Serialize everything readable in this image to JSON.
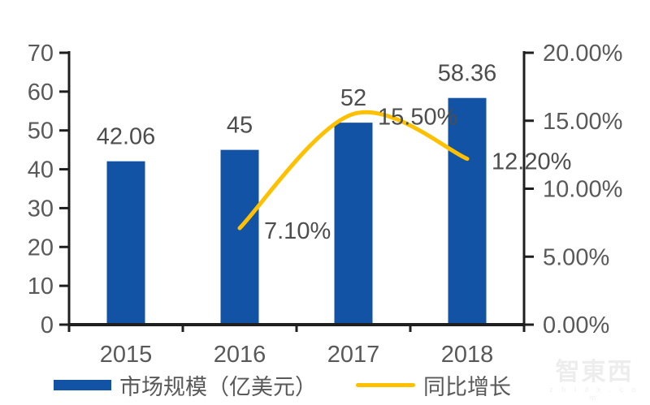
{
  "chart_data": {
    "type": "combo-bar-line",
    "categories": [
      "2015",
      "2016",
      "2017",
      "2018"
    ],
    "series": [
      {
        "name": "市场规模（亿美元）",
        "type": "bar",
        "axis": "left",
        "color": "#1253A6",
        "values": [
          42.06,
          45,
          52,
          58.36
        ],
        "labels": [
          "42.06",
          "45",
          "52",
          "58.36"
        ]
      },
      {
        "name": "同比增长",
        "type": "line",
        "axis": "right",
        "color": "#FFC000",
        "values": [
          null,
          0.071,
          0.155,
          0.122
        ],
        "labels": [
          null,
          "7.10%",
          "15.50%",
          "12.20%"
        ]
      }
    ],
    "left_axis": {
      "min": 0,
      "max": 70,
      "step": 10,
      "tick_labels": [
        "0",
        "10",
        "20",
        "30",
        "40",
        "50",
        "60",
        "70"
      ]
    },
    "right_axis": {
      "min": 0,
      "max": 0.2,
      "step": 0.05,
      "tick_labels": [
        "0.00%",
        "5.00%",
        "10.00%",
        "15.00%",
        "20.00%"
      ]
    },
    "legend_position": "bottom",
    "grid": false,
    "colors": {
      "bar": "#1253A6",
      "line": "#FFC000",
      "axis": "#1f1f1f",
      "tick_text": "#595959",
      "data_label_text": "#4d4d4d"
    }
  },
  "watermark": {
    "logo": "智東西",
    "url": "z h i d x . c o m"
  }
}
